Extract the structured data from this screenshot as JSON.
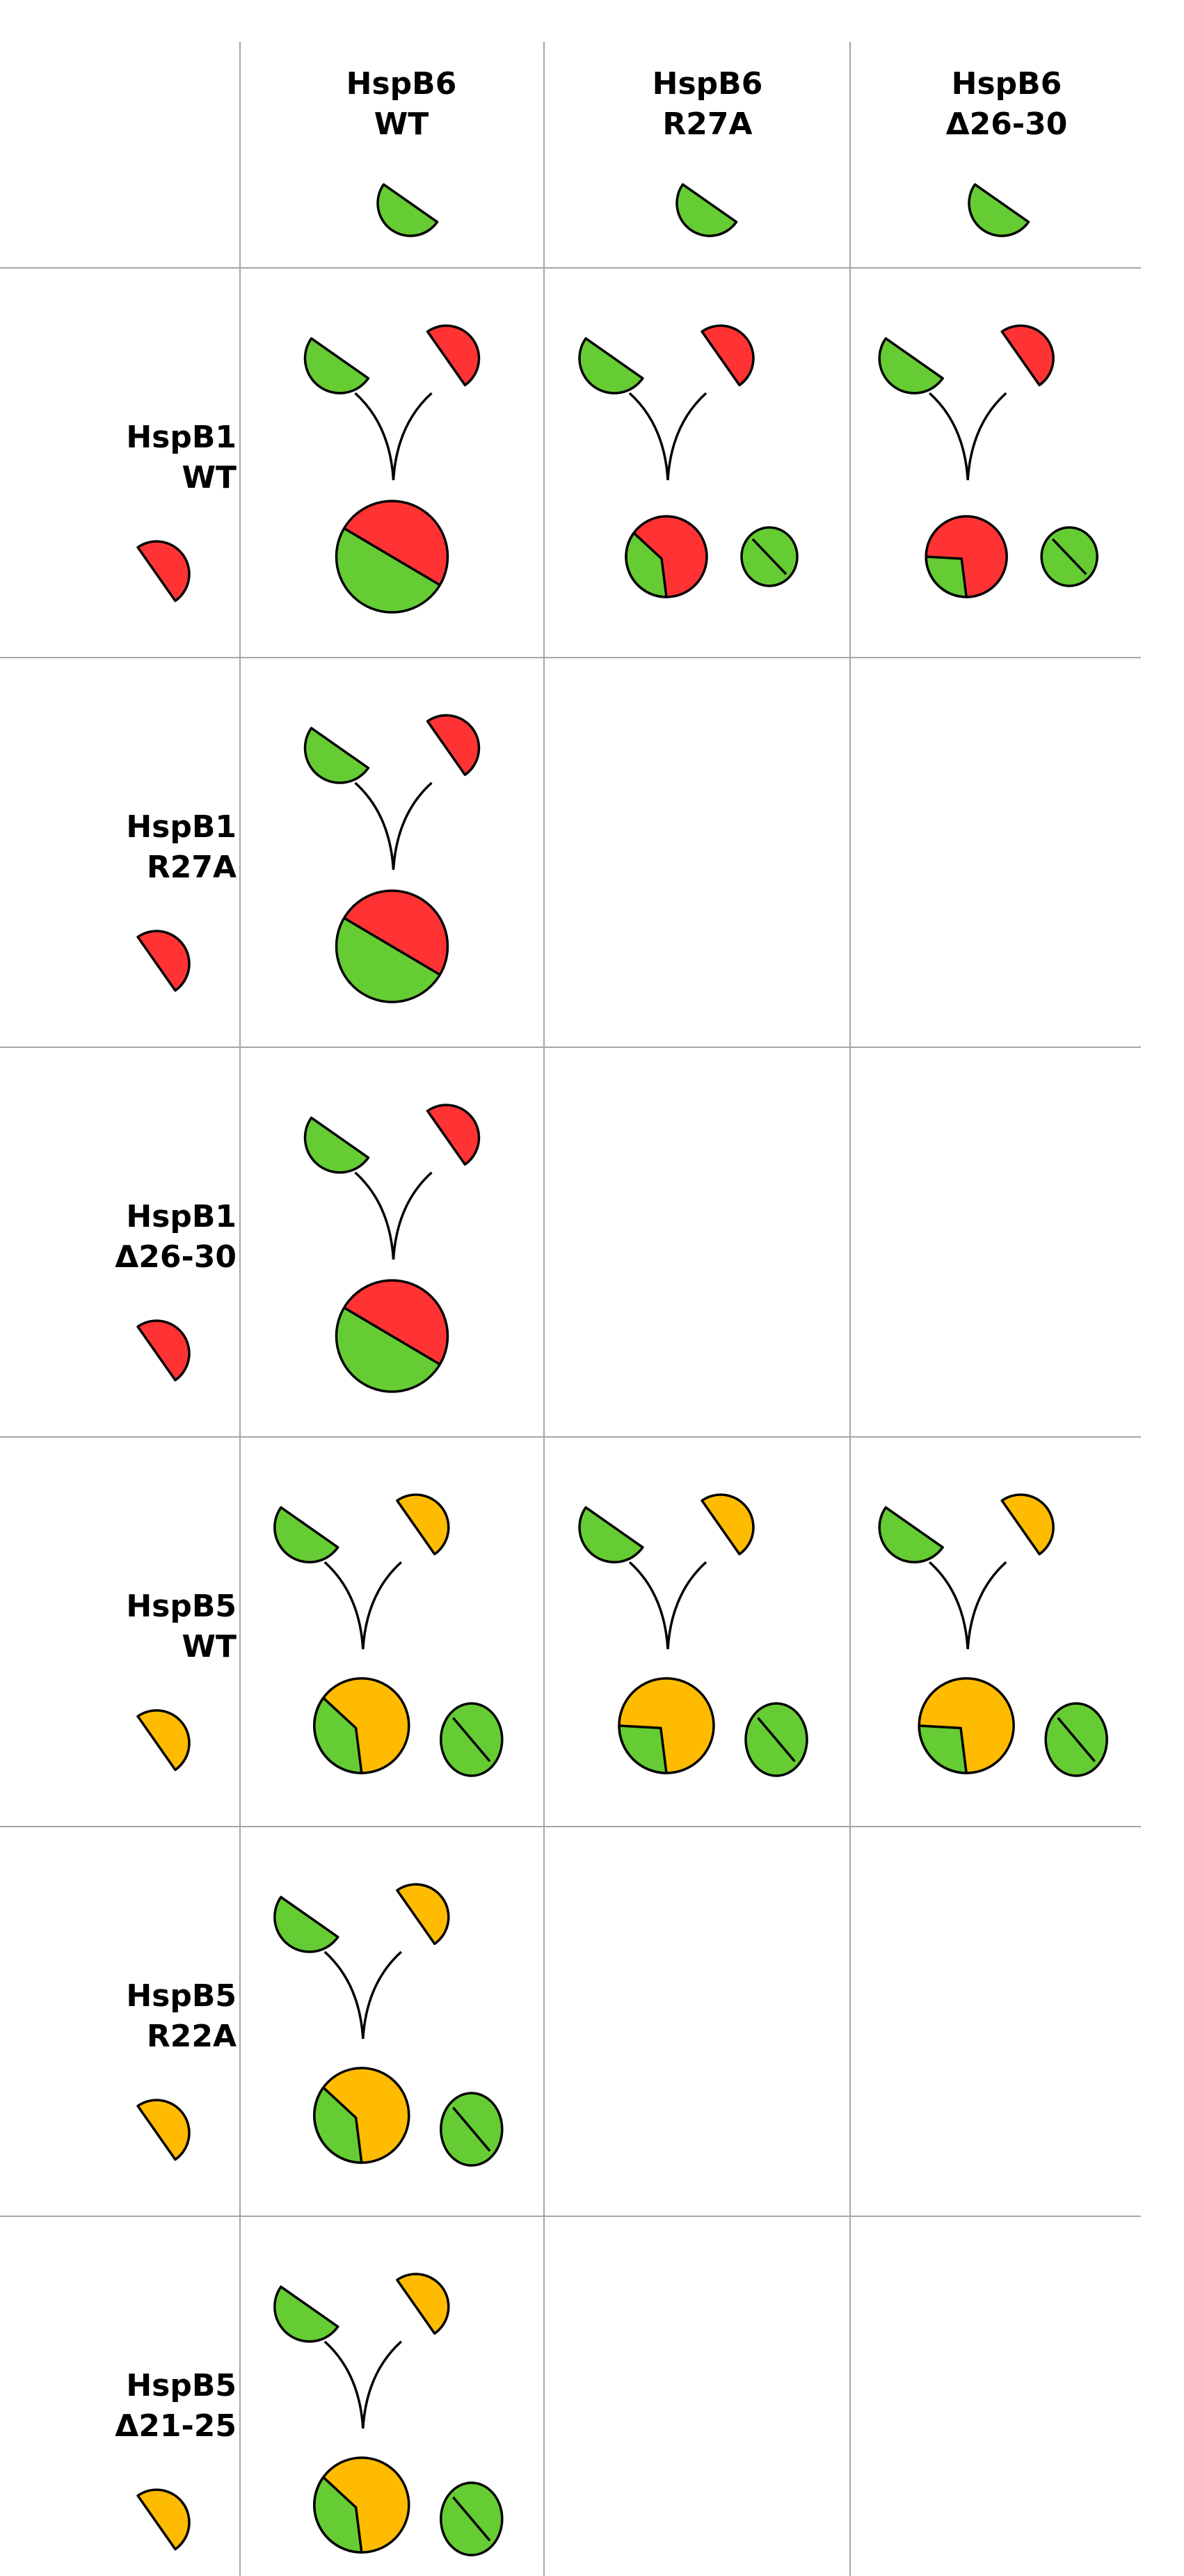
{
  "colors": {
    "hspb6": "#66cc33",
    "hspb1": "#ff3333",
    "hspb5": "#ffbb00",
    "outline": "#000000",
    "grid": "#a6a6a6"
  },
  "columns": [
    {
      "name": "HspB6",
      "variant": "WT",
      "color": "#66cc33"
    },
    {
      "name": "HspB6",
      "variant": "R27A",
      "color": "#66cc33"
    },
    {
      "name": "HspB6",
      "variant": "Δ26-30",
      "color": "#66cc33"
    }
  ],
  "rows": [
    {
      "name": "HspB1",
      "variant": "WT",
      "color": "#ff3333"
    },
    {
      "name": "HspB1",
      "variant": "R27A",
      "color": "#ff3333"
    },
    {
      "name": "HspB1",
      "variant": "Δ26-30",
      "color": "#ff3333"
    },
    {
      "name": "HspB5",
      "variant": "WT",
      "color": "#ffbb00"
    },
    {
      "name": "HspB5",
      "variant": "R22A",
      "color": "#ffbb00"
    },
    {
      "name": "HspB5",
      "variant": "Δ21-25",
      "color": "#ffbb00"
    }
  ],
  "cells": [
    {
      "row": 0,
      "col": 0,
      "partner": "#ff3333",
      "complex_fraction_hspb6": 0.5,
      "free_hspb6_dimer": false
    },
    {
      "row": 0,
      "col": 1,
      "partner": "#ff3333",
      "complex_fraction_hspb6": 0.35,
      "free_hspb6_dimer": true
    },
    {
      "row": 0,
      "col": 2,
      "partner": "#ff3333",
      "complex_fraction_hspb6": 0.25,
      "free_hspb6_dimer": true
    },
    {
      "row": 1,
      "col": 0,
      "partner": "#ff3333",
      "complex_fraction_hspb6": 0.5,
      "free_hspb6_dimer": false
    },
    {
      "row": 2,
      "col": 0,
      "partner": "#ff3333",
      "complex_fraction_hspb6": 0.5,
      "free_hspb6_dimer": false
    },
    {
      "row": 3,
      "col": 0,
      "partner": "#ffbb00",
      "complex_fraction_hspb6": 0.35,
      "free_hspb6_dimer": true
    },
    {
      "row": 3,
      "col": 1,
      "partner": "#ffbb00",
      "complex_fraction_hspb6": 0.25,
      "free_hspb6_dimer": true
    },
    {
      "row": 3,
      "col": 2,
      "partner": "#ffbb00",
      "complex_fraction_hspb6": 0.25,
      "free_hspb6_dimer": true
    },
    {
      "row": 4,
      "col": 0,
      "partner": "#ffbb00",
      "complex_fraction_hspb6": 0.35,
      "free_hspb6_dimer": true
    },
    {
      "row": 5,
      "col": 0,
      "partner": "#ffbb00",
      "complex_fraction_hspb6": 0.35,
      "free_hspb6_dimer": true
    }
  ]
}
